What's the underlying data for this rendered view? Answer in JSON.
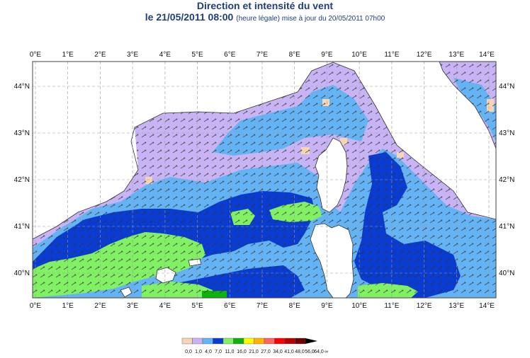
{
  "header": {
    "title": "Direction et intensité du vent",
    "date": "le 21/05/2011 08:00",
    "note": "(heure légale) mise à jour du 20/05/2011 07h00"
  },
  "map": {
    "lon_ticks": [
      "0°E",
      "1°E",
      "2°E",
      "3°E",
      "4°E",
      "5°E",
      "6°E",
      "7°E",
      "8°E",
      "9°E",
      "10°E",
      "11°E",
      "12°E",
      "13°E",
      "14°E"
    ],
    "lat_ticks": [
      "44°N",
      "43°N",
      "42°N",
      "41°N",
      "40°N"
    ]
  },
  "legend": {
    "labels": [
      "0,0",
      "1,0",
      "4,0",
      "7,0",
      "11,0",
      "16,0",
      "21,0",
      "27,0",
      "34,0",
      "41,0",
      "48,0",
      "56,0",
      "64,0",
      "∞"
    ],
    "colors": [
      "#f5d5b5",
      "#c8b4f5",
      "#64b4f5",
      "#0a3cd2",
      "#82f064",
      "#0ab40a",
      "#ffff00",
      "#ffb400",
      "#ff6464",
      "#ff0000",
      "#b40000",
      "#6e0000",
      "#000000"
    ]
  },
  "colors": {
    "sea_base": "#c8b4f5",
    "light_blue": "#64b4f5",
    "dark_blue": "#0a3cd2",
    "light_green": "#82f064",
    "dark_green": "#0ab40a",
    "beige": "#f5d5b5",
    "land": "#ffffff"
  }
}
